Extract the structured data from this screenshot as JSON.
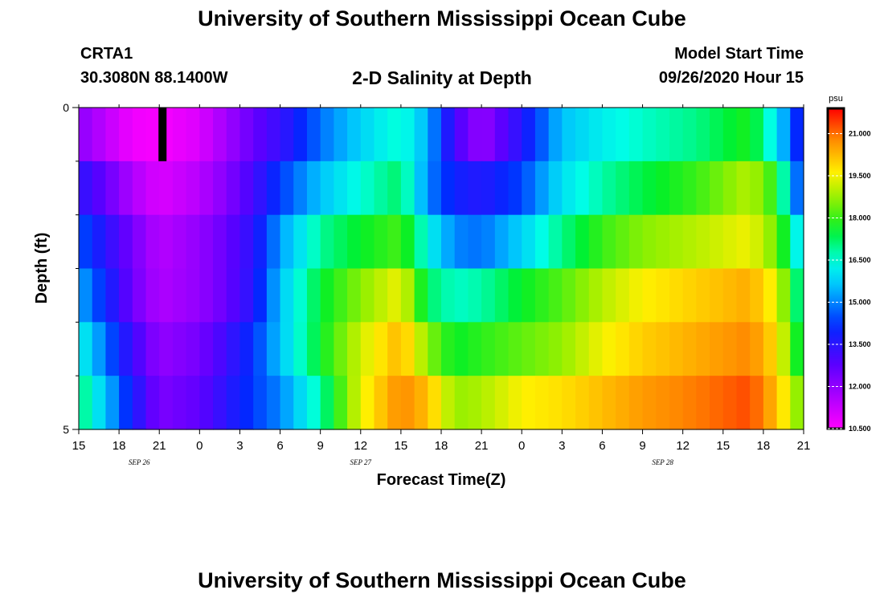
{
  "header": {
    "title": "University of Southern Mississippi Ocean Cube",
    "station_id": "CRTA1",
    "station_coords": "30.3080N 88.1400W",
    "plot_title": "2-D Salinity at Depth",
    "model_start_label": "Model Start Time",
    "model_start_time": "09/26/2020 Hour 15"
  },
  "footer": {
    "title": "University of Southern Mississippi Ocean Cube"
  },
  "chart_data": {
    "type": "heatmap",
    "xlabel": "Forecast Time(Z)",
    "ylabel": "Depth (ft)",
    "x_tick_labels": [
      "15",
      "18",
      "21",
      "0",
      "3",
      "6",
      "9",
      "12",
      "15",
      "18",
      "21",
      "0",
      "3",
      "6",
      "9",
      "12",
      "15",
      "18",
      "21"
    ],
    "date_labels": [
      {
        "label": "SEP 26",
        "hour_index": 4.5
      },
      {
        "label": "SEP 27",
        "hour_index": 21
      },
      {
        "label": "SEP 28",
        "hour_index": 43.5
      }
    ],
    "x_range_hours": [
      0,
      54
    ],
    "y_range_ft": [
      0,
      5
    ],
    "y_tick_labels": [
      "0",
      "5"
    ],
    "colorbar": {
      "unit": "psu",
      "min": 10.5,
      "max": 21.9,
      "tick_labels": [
        "21.000",
        "19.500",
        "18.000",
        "16.500",
        "15.000",
        "13.500",
        "12.000",
        "10.500"
      ],
      "tick_values": [
        21.0,
        19.5,
        18.0,
        16.5,
        15.0,
        13.5,
        12.0,
        10.5
      ]
    },
    "data_gap": {
      "depth_layer": 0,
      "hour_index": 6
    },
    "layer_knots": [
      [
        [
          0,
          12.1
        ],
        [
          2,
          11.4
        ],
        [
          4,
          10.7
        ],
        [
          6,
          10.6
        ],
        [
          9,
          11.0
        ],
        [
          11,
          11.8
        ],
        [
          13,
          12.6
        ],
        [
          15,
          13.3
        ],
        [
          18,
          14.8
        ],
        [
          21,
          15.8
        ],
        [
          24,
          16.6
        ],
        [
          26,
          15.4
        ],
        [
          28,
          13.1
        ],
        [
          30,
          11.9
        ],
        [
          33,
          13.6
        ],
        [
          36,
          15.6
        ],
        [
          39,
          16.2
        ],
        [
          42,
          16.6
        ],
        [
          46,
          17.0
        ],
        [
          50,
          17.8
        ],
        [
          52,
          16.0
        ],
        [
          54,
          13.5
        ]
      ],
      [
        [
          0,
          13.5
        ],
        [
          2,
          12.6
        ],
        [
          4,
          11.6
        ],
        [
          6,
          11.0
        ],
        [
          9,
          11.5
        ],
        [
          11,
          12.2
        ],
        [
          13,
          13.1
        ],
        [
          15,
          14.3
        ],
        [
          18,
          15.6
        ],
        [
          21,
          16.5
        ],
        [
          24,
          17.2
        ],
        [
          26,
          15.0
        ],
        [
          28,
          13.9
        ],
        [
          30,
          13.6
        ],
        [
          33,
          14.4
        ],
        [
          36,
          16.0
        ],
        [
          39,
          16.8
        ],
        [
          42,
          17.4
        ],
        [
          46,
          18.0
        ],
        [
          50,
          19.0
        ],
        [
          52,
          17.8
        ],
        [
          54,
          13.8
        ]
      ],
      [
        [
          0,
          14.6
        ],
        [
          2,
          13.5
        ],
        [
          4,
          12.4
        ],
        [
          6,
          11.5
        ],
        [
          9,
          12.0
        ],
        [
          11,
          12.6
        ],
        [
          13,
          13.5
        ],
        [
          15,
          15.2
        ],
        [
          18,
          16.9
        ],
        [
          21,
          17.6
        ],
        [
          24,
          18.1
        ],
        [
          26,
          16.3
        ],
        [
          28,
          15.0
        ],
        [
          30,
          14.8
        ],
        [
          33,
          15.8
        ],
        [
          36,
          17.0
        ],
        [
          39,
          18.0
        ],
        [
          42,
          18.6
        ],
        [
          46,
          19.0
        ],
        [
          50,
          19.5
        ],
        [
          52,
          18.4
        ],
        [
          54,
          15.6
        ]
      ],
      [
        [
          0,
          15.4
        ],
        [
          2,
          14.0
        ],
        [
          4,
          12.5
        ],
        [
          6,
          11.6
        ],
        [
          9,
          12.0
        ],
        [
          11,
          12.6
        ],
        [
          13,
          13.6
        ],
        [
          15,
          15.6
        ],
        [
          18,
          17.5
        ],
        [
          21,
          18.6
        ],
        [
          24,
          19.5
        ],
        [
          26,
          17.2
        ],
        [
          28,
          16.6
        ],
        [
          30,
          16.8
        ],
        [
          33,
          17.6
        ],
        [
          36,
          18.2
        ],
        [
          39,
          19.0
        ],
        [
          42,
          19.6
        ],
        [
          46,
          20.0
        ],
        [
          50,
          20.4
        ],
        [
          52,
          19.4
        ],
        [
          54,
          16.4
        ]
      ],
      [
        [
          0,
          16.4
        ],
        [
          2,
          14.8
        ],
        [
          4,
          13.2
        ],
        [
          6,
          12.0
        ],
        [
          9,
          12.4
        ],
        [
          11,
          13.2
        ],
        [
          13,
          14.2
        ],
        [
          15,
          15.6
        ],
        [
          18,
          17.6
        ],
        [
          21,
          19.2
        ],
        [
          24,
          20.3
        ],
        [
          26,
          18.6
        ],
        [
          28,
          17.6
        ],
        [
          30,
          17.9
        ],
        [
          33,
          18.3
        ],
        [
          36,
          18.7
        ],
        [
          39,
          19.5
        ],
        [
          42,
          20.0
        ],
        [
          46,
          20.4
        ],
        [
          50,
          20.8
        ],
        [
          52,
          19.8
        ],
        [
          54,
          17.0
        ]
      ],
      [
        [
          0,
          17.2
        ],
        [
          2,
          15.6
        ],
        [
          4,
          13.8
        ],
        [
          6,
          12.3
        ],
        [
          9,
          12.7
        ],
        [
          11,
          13.5
        ],
        [
          13,
          14.3
        ],
        [
          15,
          15.0
        ],
        [
          18,
          16.8
        ],
        [
          21,
          19.4
        ],
        [
          24,
          20.8
        ],
        [
          26,
          20.2
        ],
        [
          28,
          18.7
        ],
        [
          30,
          18.9
        ],
        [
          33,
          19.6
        ],
        [
          36,
          19.8
        ],
        [
          39,
          20.2
        ],
        [
          42,
          20.6
        ],
        [
          46,
          20.9
        ],
        [
          50,
          21.3
        ],
        [
          52,
          20.2
        ],
        [
          54,
          18.2
        ]
      ]
    ]
  }
}
